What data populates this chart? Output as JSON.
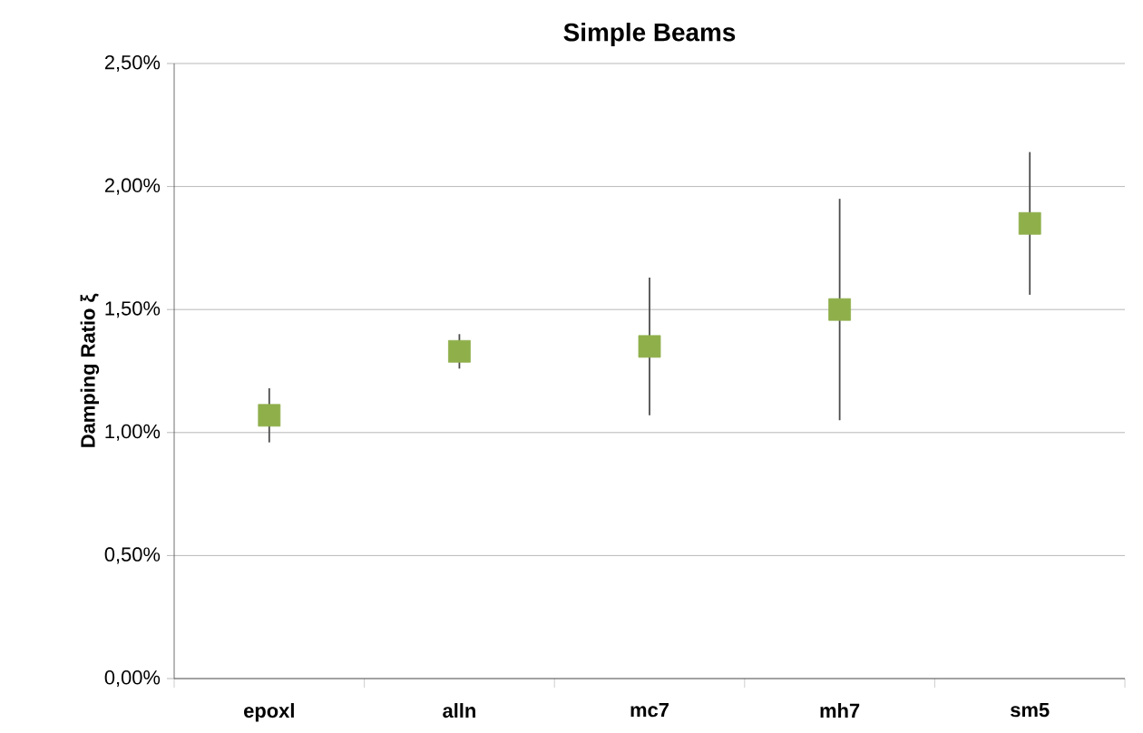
{
  "chart_data": {
    "type": "scatter",
    "title": "Simple Beams",
    "ylabel": "Damping Ratio ξ",
    "categories": [
      "epoxl",
      "alln",
      "mc7",
      "mh7",
      "sm5"
    ],
    "values": [
      1.07,
      1.33,
      1.35,
      1.5,
      1.85
    ],
    "errors": [
      0.11,
      0.07,
      0.28,
      0.45,
      0.29
    ],
    "color": "#8faf4b",
    "marker": "square",
    "ylim": [
      0,
      2.5
    ],
    "yticks": [
      {
        "value": 0,
        "label": "0,00%"
      },
      {
        "value": 0.5,
        "label": "0,50%"
      },
      {
        "value": 1,
        "label": "1,00%"
      },
      {
        "value": 1.5,
        "label": "1,50%"
      },
      {
        "value": 2,
        "label": "2,00%"
      },
      {
        "value": 2.5,
        "label": "2,50%"
      }
    ],
    "grid": "y"
  }
}
